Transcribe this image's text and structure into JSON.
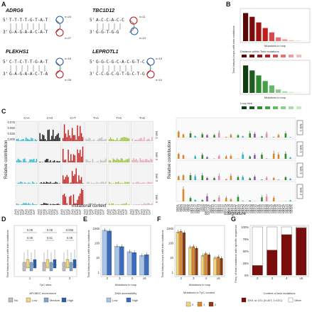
{
  "panels": {
    "A": {
      "label": "A",
      "hairpins": [
        {
          "gene": "ADRG6",
          "top": "T-T-T-T-G-T-A-T",
          "bottom": "G-A-G-A-A-C-A-T",
          "n_top": "n=24",
          "n_bottom": "n=27"
        },
        {
          "gene": "TBC1D12",
          "top": "A-C-C-A-C-C",
          "bottom": "G-G-T-G-G",
          "n_top": "n=11",
          "n_bottom": "n=10"
        },
        {
          "gene": "PLEKHS1",
          "top": "C-T-C-T-T-G-A-T",
          "bottom": "G-A-G-A-A-C-T-A",
          "n_top": "n=16",
          "n_bottom": "n=26"
        },
        {
          "gene": "LEPROTL1",
          "top": "G-G-C-G-C-A-C-G-T-C",
          "bottom": "C-C-G-C-G-T-G-C-T-G",
          "n_top": "n=15",
          "n_bottom": "n=10"
        }
      ],
      "prime5": "5'",
      "prime3": "3'"
    },
    "B": {
      "label": "B",
      "ylabel": "Total hairpin-loops with twin mutations",
      "xlabel": "Mutations in loop",
      "legend_top_title": "Distance within Twin mutations",
      "legend_bottom_title": "Loop size",
      "top_bars": [
        900,
        780,
        600,
        420,
        280,
        120,
        60,
        30,
        20,
        12
      ],
      "bottom_bars": [
        880,
        720,
        560,
        380,
        240,
        110,
        55,
        28,
        18,
        10
      ]
    },
    "C": {
      "label": "C",
      "ylabel": "Relative contribution",
      "xlabel": "mutational context",
      "xlabel_right": "Signature",
      "contexts": [
        "C>A",
        "C>G",
        "C>T",
        "T>A",
        "T>C",
        "T>G"
      ],
      "row_labels": [
        "twin 1",
        "twin 2",
        "twin 3",
        "twin 4"
      ],
      "yticks": [
        "0.075",
        "0.050",
        "0.025",
        "0.000"
      ],
      "signatures": [
        "SBS1",
        "SBS2",
        "SBS3",
        "SBS4",
        "SBS5",
        "SBS6",
        "SBS7a",
        "SBS7b",
        "SBS7c",
        "SBS7d",
        "SBS8",
        "SBS9",
        "SBS10a",
        "SBS10b",
        "SBS11",
        "SBS12",
        "SBS13",
        "SBS14",
        "SBS15",
        "SBS16",
        "SBS17a",
        "SBS17b",
        "SBS18",
        "SBS19",
        "SBS20",
        "SBS21",
        "SBS22",
        "SBS23",
        "SBS24",
        "SBS25",
        "SBS26",
        "SBS28",
        "SBS29",
        "SBS30",
        "SBS31",
        "SBS32",
        "SBS33",
        "SBS34",
        "SBS35",
        "SBS36",
        "SBS37",
        "SBS38",
        "SBS39",
        "SBS40",
        "SBS41",
        "SBS42",
        "SBS44",
        "SBS84",
        "SBS85"
      ]
    },
    "D": {
      "label": "D",
      "ylabel": "Total hairpin-loops with twin mutations",
      "xlabel": "TpC sites",
      "xticks": [
        "1",
        "2",
        "3"
      ],
      "pvalues_top": [
        "0.09",
        "0.09",
        "0.006"
      ],
      "pvalues_bottom": [
        "0.06",
        "0.51",
        "0.08"
      ],
      "legend_title": "APOBEC enrichment",
      "legend_items": [
        "No",
        "Low",
        "Medium",
        "High"
      ]
    },
    "E": {
      "label": "E",
      "ylabel": "Total hairpin-loops with twin mutations",
      "xlabel": "Mutations in loop",
      "xticks": [
        "2",
        "3",
        "4",
        "≥5"
      ],
      "legend_title": "DNA accessibility",
      "legend_items": [
        "Low",
        "High"
      ],
      "yticks": [
        "1000",
        "100",
        "10",
        "1"
      ]
    },
    "F": {
      "label": "F",
      "ylabel": "Total hairpin-loops with twin mutations",
      "xlabel": "Mutations in loop",
      "xticks": [
        "2",
        "3",
        "4",
        "≥5"
      ],
      "legend_title": "Mutations in TpC context",
      "legend_items": [
        "0",
        "1",
        "2"
      ],
      "yticks": [
        "1000",
        "100",
        "10",
        "1"
      ]
    },
    "G": {
      "label": "G",
      "ylabel": "Freq. of twin mutations with specific sequence",
      "xlabel": "",
      "xticks": [
        "2",
        "3",
        "4",
        "≥5"
      ],
      "yticks": [
        "100%",
        "75%",
        "50%",
        "25%",
        "0%"
      ],
      "legend_title": "Context of twin mutations",
      "legend_items": [
        "1001 or 101 (0=A/T, 1=G/C)",
        "Other"
      ]
    }
  },
  "chart_data": [
    {
      "type": "bar",
      "title": "",
      "categories": [
        "2",
        "3",
        "4",
        "≥5"
      ],
      "series": [
        {
          "name": "Low",
          "values": [
            1200,
            95,
            40,
            22
          ]
        },
        {
          "name": "High",
          "values": [
            1050,
            90,
            35,
            25
          ]
        }
      ],
      "xlabel": "Mutations in loop",
      "ylabel": "Total hairpin-loops with twin mutations",
      "yscale": "log",
      "ylim": [
        1,
        2000
      ]
    },
    {
      "type": "bar",
      "title": "",
      "categories": [
        "2",
        "3",
        "4",
        "≥5"
      ],
      "series": [
        {
          "name": "0",
          "values": [
            900,
            80,
            22,
            15
          ]
        },
        {
          "name": "1",
          "values": [
            1000,
            90,
            30,
            18
          ]
        },
        {
          "name": "2",
          "values": [
            800,
            70,
            25,
            14
          ]
        }
      ],
      "xlabel": "Mutations in loop",
      "ylabel": "Total hairpin-loops with twin mutations",
      "yscale": "log",
      "ylim": [
        1,
        2000
      ]
    },
    {
      "type": "bar",
      "title": "",
      "categories": [
        "2",
        "3",
        "4",
        "≥5"
      ],
      "series": [
        {
          "name": "1001 or 101 (0=A/T, 1=G/C)",
          "values": [
            20,
            52,
            84,
            98
          ]
        },
        {
          "name": "Other",
          "values": [
            80,
            48,
            16,
            2
          ]
        }
      ],
      "xlabel": "",
      "ylabel": "Freq. of twin mutations with specific sequence",
      "stacked": true,
      "ylim": [
        0,
        100
      ]
    }
  ],
  "colors": {
    "red_dark": "#7a0c0c",
    "red": "#c21b1b",
    "green": "#2f8a2f",
    "blue_dark": "#2b5fa8",
    "blue_light": "#a9c6ea",
    "yellow": "#f2d47a",
    "orange": "#d9892b",
    "brown": "#8a3a10",
    "grey": "#bfbfbf",
    "cyan": "#27b6d4",
    "black": "#111111",
    "olive": "#9cc23a",
    "purple": "#8c55a8"
  }
}
